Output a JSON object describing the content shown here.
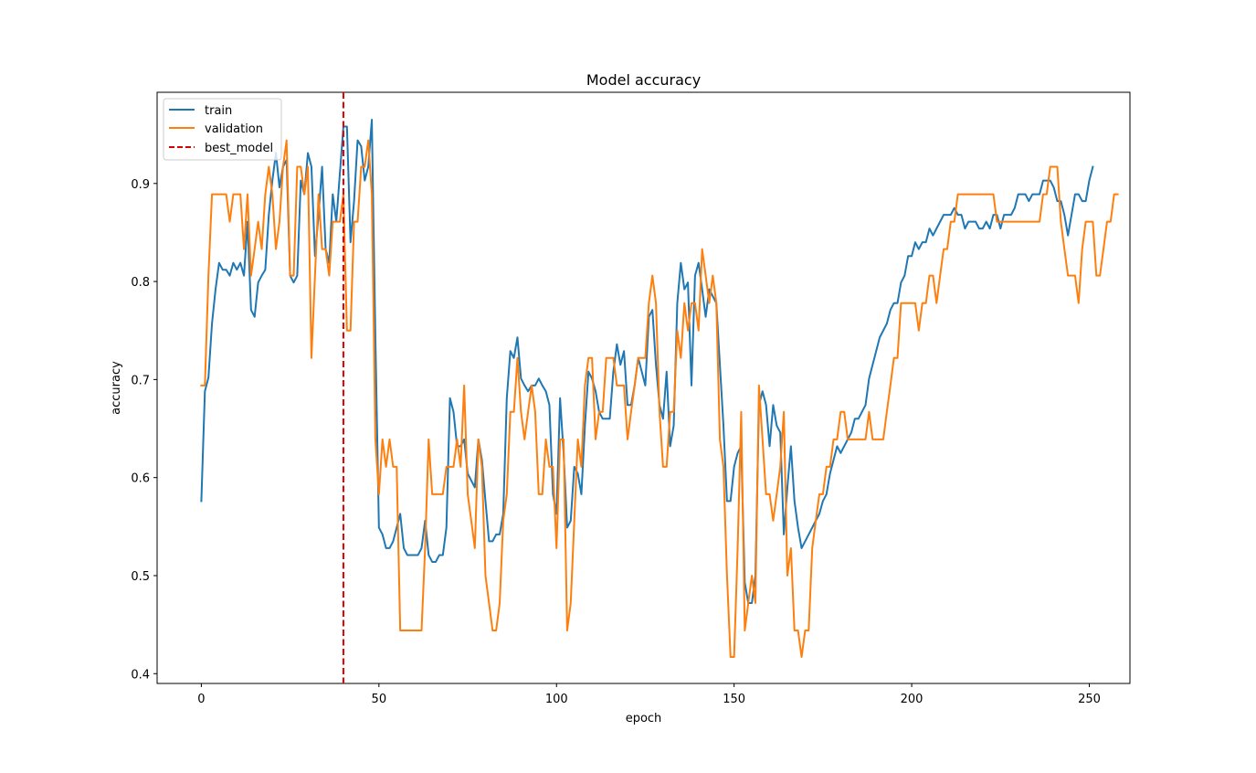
{
  "chart_data": {
    "type": "line",
    "title": "Model accuracy",
    "xlabel": "epoch",
    "ylabel": "accuracy",
    "xlim": [
      -12.45,
      261.45
    ],
    "ylim": [
      0.39,
      0.993
    ],
    "xticks": [
      0,
      50,
      100,
      150,
      200,
      250
    ],
    "yticks": [
      0.4,
      0.5,
      0.6,
      0.7,
      0.8,
      0.9
    ],
    "ytick_labels": [
      "0.4",
      "0.5",
      "0.6",
      "0.7",
      "0.8",
      "0.9"
    ],
    "grid": false,
    "legend_position": "upper-left",
    "series": [
      {
        "name": "train",
        "color": "#1f77b4",
        "x_start": 0,
        "values": [
          0.576,
          0.688,
          0.702,
          0.757,
          0.792,
          0.819,
          0.812,
          0.812,
          0.806,
          0.819,
          0.812,
          0.819,
          0.806,
          0.861,
          0.771,
          0.764,
          0.799,
          0.806,
          0.812,
          0.868,
          0.903,
          0.931,
          0.896,
          0.917,
          0.924,
          0.806,
          0.799,
          0.806,
          0.903,
          0.889,
          0.931,
          0.917,
          0.826,
          0.868,
          0.917,
          0.833,
          0.819,
          0.889,
          0.861,
          0.91,
          0.958,
          0.958,
          0.84,
          0.882,
          0.944,
          0.938,
          0.903,
          0.917,
          0.965,
          0.743,
          0.549,
          0.542,
          0.528,
          0.528,
          0.535,
          0.549,
          0.563,
          0.528,
          0.521,
          0.521,
          0.521,
          0.521,
          0.528,
          0.556,
          0.521,
          0.514,
          0.514,
          0.521,
          0.521,
          0.549,
          0.681,
          0.667,
          0.632,
          0.632,
          0.639,
          0.604,
          0.597,
          0.59,
          0.639,
          0.618,
          0.576,
          0.535,
          0.535,
          0.542,
          0.542,
          0.563,
          0.681,
          0.729,
          0.722,
          0.743,
          0.701,
          0.694,
          0.688,
          0.694,
          0.694,
          0.701,
          0.694,
          0.688,
          0.674,
          0.583,
          0.563,
          0.681,
          0.625,
          0.549,
          0.556,
          0.611,
          0.604,
          0.583,
          0.653,
          0.708,
          0.701,
          0.688,
          0.667,
          0.66,
          0.66,
          0.66,
          0.708,
          0.736,
          0.715,
          0.729,
          0.674,
          0.674,
          0.694,
          0.722,
          0.708,
          0.694,
          0.764,
          0.771,
          0.715,
          0.674,
          0.66,
          0.708,
          0.632,
          0.653,
          0.778,
          0.819,
          0.792,
          0.799,
          0.694,
          0.806,
          0.819,
          0.792,
          0.764,
          0.792,
          0.785,
          0.778,
          0.715,
          0.653,
          0.576,
          0.576,
          0.611,
          0.625,
          0.632,
          0.493,
          0.472,
          0.472,
          0.5,
          0.674,
          0.688,
          0.674,
          0.632,
          0.674,
          0.653,
          0.646,
          0.542,
          0.59,
          0.632,
          0.576,
          0.549,
          0.528,
          0.535,
          0.542,
          0.549,
          0.556,
          0.563,
          0.576,
          0.583,
          0.604,
          0.618,
          0.632,
          0.625,
          0.632,
          0.639,
          0.646,
          0.66,
          0.66,
          0.667,
          0.674,
          0.701,
          0.715,
          0.729,
          0.743,
          0.75,
          0.757,
          0.771,
          0.778,
          0.778,
          0.799,
          0.806,
          0.826,
          0.826,
          0.84,
          0.833,
          0.84,
          0.84,
          0.854,
          0.847,
          0.854,
          0.861,
          0.868,
          0.868,
          0.868,
          0.875,
          0.868,
          0.868,
          0.854,
          0.861,
          0.861,
          0.861,
          0.854,
          0.854,
          0.861,
          0.854,
          0.868,
          0.868,
          0.854,
          0.868,
          0.868,
          0.868,
          0.875,
          0.889,
          0.889,
          0.889,
          0.882,
          0.889,
          0.889,
          0.889,
          0.903,
          0.903,
          0.903,
          0.896,
          0.882,
          0.882,
          0.868,
          0.847,
          0.868,
          0.889,
          0.889,
          0.882,
          0.882,
          0.903,
          0.917
        ]
      },
      {
        "name": "validation",
        "color": "#ff7f0e",
        "x_start": 0,
        "values": [
          0.694,
          0.694,
          0.806,
          0.889,
          0.889,
          0.889,
          0.889,
          0.889,
          0.861,
          0.889,
          0.889,
          0.889,
          0.833,
          0.889,
          0.806,
          0.833,
          0.861,
          0.833,
          0.889,
          0.917,
          0.889,
          0.833,
          0.861,
          0.917,
          0.944,
          0.806,
          0.806,
          0.917,
          0.917,
          0.889,
          0.917,
          0.722,
          0.806,
          0.889,
          0.833,
          0.833,
          0.806,
          0.861,
          0.861,
          0.861,
          0.889,
          0.75,
          0.75,
          0.861,
          0.861,
          0.917,
          0.917,
          0.944,
          0.889,
          0.639,
          0.583,
          0.639,
          0.611,
          0.639,
          0.611,
          0.611,
          0.444,
          0.444,
          0.444,
          0.444,
          0.444,
          0.444,
          0.444,
          0.528,
          0.639,
          0.583,
          0.583,
          0.583,
          0.583,
          0.611,
          0.611,
          0.611,
          0.639,
          0.611,
          0.694,
          0.583,
          0.556,
          0.528,
          0.639,
          0.611,
          0.5,
          0.472,
          0.444,
          0.444,
          0.472,
          0.556,
          0.583,
          0.667,
          0.667,
          0.722,
          0.667,
          0.639,
          0.667,
          0.694,
          0.667,
          0.583,
          0.583,
          0.639,
          0.611,
          0.611,
          0.528,
          0.639,
          0.639,
          0.444,
          0.472,
          0.556,
          0.639,
          0.611,
          0.694,
          0.722,
          0.722,
          0.639,
          0.667,
          0.667,
          0.722,
          0.722,
          0.722,
          0.694,
          0.694,
          0.694,
          0.639,
          0.667,
          0.694,
          0.722,
          0.722,
          0.722,
          0.778,
          0.806,
          0.778,
          0.667,
          0.611,
          0.611,
          0.667,
          0.667,
          0.75,
          0.722,
          0.778,
          0.75,
          0.778,
          0.778,
          0.75,
          0.833,
          0.806,
          0.778,
          0.806,
          0.778,
          0.639,
          0.611,
          0.5,
          0.417,
          0.417,
          0.528,
          0.667,
          0.444,
          0.472,
          0.5,
          0.472,
          0.694,
          0.639,
          0.583,
          0.583,
          0.556,
          0.583,
          0.611,
          0.667,
          0.5,
          0.528,
          0.444,
          0.444,
          0.417,
          0.444,
          0.444,
          0.528,
          0.556,
          0.583,
          0.583,
          0.611,
          0.611,
          0.639,
          0.639,
          0.667,
          0.667,
          0.639,
          0.639,
          0.639,
          0.639,
          0.639,
          0.639,
          0.667,
          0.639,
          0.639,
          0.639,
          0.639,
          0.667,
          0.694,
          0.722,
          0.722,
          0.778,
          0.778,
          0.778,
          0.778,
          0.778,
          0.75,
          0.778,
          0.778,
          0.806,
          0.806,
          0.778,
          0.806,
          0.833,
          0.833,
          0.861,
          0.861,
          0.889,
          0.889,
          0.889,
          0.889,
          0.889,
          0.889,
          0.889,
          0.889,
          0.889,
          0.889,
          0.889,
          0.861,
          0.861,
          0.861,
          0.861,
          0.861,
          0.861,
          0.861,
          0.861,
          0.861,
          0.861,
          0.861,
          0.861,
          0.861,
          0.889,
          0.889,
          0.917,
          0.917,
          0.917,
          0.861,
          0.833,
          0.806,
          0.806,
          0.806,
          0.778,
          0.833,
          0.861,
          0.861,
          0.861,
          0.806,
          0.806,
          0.833,
          0.861,
          0.861,
          0.889,
          0.889
        ]
      },
      {
        "name": "best_model",
        "color": "#dd0000",
        "style": "dashed",
        "type": "vline",
        "x": 40
      }
    ]
  }
}
